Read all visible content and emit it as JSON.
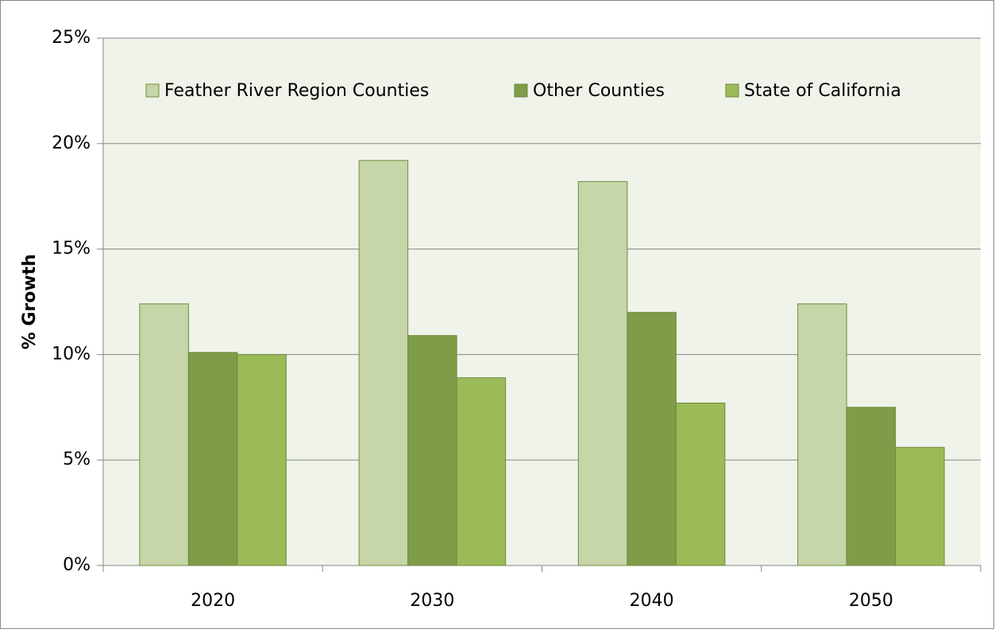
{
  "chart_data": {
    "type": "bar",
    "y_label": "% Growth",
    "categories": [
      "2020",
      "2030",
      "2040",
      "2050"
    ],
    "series": [
      {
        "name": "Feather River Region Counties",
        "color": "#c6d6a8",
        "values": [
          12.4,
          19.2,
          18.2,
          12.4
        ]
      },
      {
        "name": "Other Counties",
        "color": "#7f9c48",
        "values": [
          10.1,
          10.9,
          12.0,
          7.5
        ]
      },
      {
        "name": "State of California",
        "color": "#9bbb59",
        "values": [
          10.0,
          8.9,
          7.7,
          5.6
        ]
      }
    ],
    "ylim": [
      0,
      25
    ],
    "yticks": [
      {
        "value": 0,
        "label": "0%"
      },
      {
        "value": 5,
        "label": "5%"
      },
      {
        "value": 10,
        "label": "10%"
      },
      {
        "value": 15,
        "label": "15%"
      },
      {
        "value": 20,
        "label": "20%"
      },
      {
        "value": 25,
        "label": "25%"
      }
    ],
    "grid": true,
    "legend": "top"
  }
}
